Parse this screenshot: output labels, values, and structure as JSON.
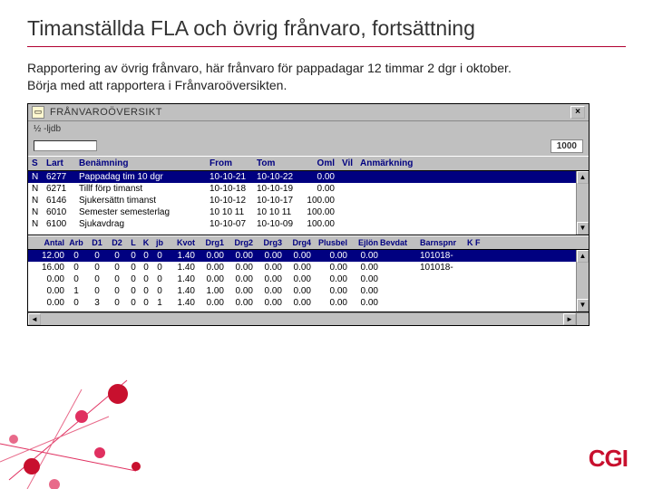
{
  "slide": {
    "title": "Timanställda FLA och övrig frånvaro, fortsättning",
    "desc_line1": "Rapportering av övrig frånvaro, här frånvaro för pappadagar 12 timmar 2 dgr i oktober.",
    "desc_line2": "Börja med att rapportera i Frånvaroöversikten."
  },
  "window": {
    "title": "FRÅNVAROÖVERSIKT",
    "info_left": "½   -ljdb",
    "right_tag": "1000"
  },
  "top_headers": {
    "s": "S",
    "lart": "Lart",
    "ben": "Benämning",
    "from": "From",
    "tom": "Tom",
    "oml": "Oml",
    "vil": "Vil",
    "anm": "Anmärkning"
  },
  "top_rows": [
    {
      "s": "N",
      "lart": "6277",
      "ben": "Pappadag tim 10 dgr",
      "from": "10-10-21",
      "tom": "10-10-22",
      "oml": "0.00",
      "selected": true
    },
    {
      "s": "N",
      "lart": "6271",
      "ben": "Tillf förp timanst",
      "from": "10-10-18",
      "tom": "10-10-19",
      "oml": "0.00"
    },
    {
      "s": "N",
      "lart": "6146",
      "ben": "Sjukersättn timanst",
      "from": "10-10-12",
      "tom": "10-10-17",
      "oml": "100.00"
    },
    {
      "s": "N",
      "lart": "6010",
      "ben": "Semester semesterlag",
      "from": "10 10 11",
      "tom": "10 10 11",
      "oml": "100.00"
    },
    {
      "s": "N",
      "lart": "6100",
      "ben": "Sjukavdrag",
      "from": "10-10-07",
      "tom": "10-10-09",
      "oml": "100.00"
    }
  ],
  "bottom_headers": {
    "ant": "Antal",
    "arb": "Arb",
    "d1": "D1",
    "d2": "D2",
    "l": "L",
    "k": "K",
    "jb": "jb",
    "kv": "Kvot",
    "dr1": "Drg1",
    "dr2": "Drg2",
    "dr3": "Drg3",
    "dr4": "Drg4",
    "pb": "Plusbel",
    "ejl": "Ejlön",
    "bev": "Bevdat",
    "bar": "Barnspnr",
    "kf": "K F"
  },
  "bottom_rows": [
    {
      "ant": "12.00",
      "arb": "0",
      "d1": "0",
      "d2": "0",
      "l": "0",
      "k": "0",
      "jb": "0",
      "kv": "1.40",
      "dr1": "0.00",
      "dr2": "0.00",
      "dr3": "0.00",
      "dr4": "0.00",
      "pb": "0.00",
      "ejl": "0.00",
      "bev": "",
      "bar": "101018-",
      "selected": true
    },
    {
      "ant": "16.00",
      "arb": "0",
      "d1": "0",
      "d2": "0",
      "l": "0",
      "k": "0",
      "jb": "0",
      "kv": "1.40",
      "dr1": "0.00",
      "dr2": "0.00",
      "dr3": "0.00",
      "dr4": "0.00",
      "pb": "0.00",
      "ejl": "0.00",
      "bev": "",
      "bar": "101018-"
    },
    {
      "ant": "0.00",
      "arb": "0",
      "d1": "0",
      "d2": "0",
      "l": "0",
      "k": "0",
      "jb": "0",
      "kv": "1.40",
      "dr1": "0.00",
      "dr2": "0.00",
      "dr3": "0.00",
      "dr4": "0.00",
      "pb": "0.00",
      "ejl": "0.00",
      "bev": "",
      "bar": ""
    },
    {
      "ant": "0.00",
      "arb": "1",
      "d1": "0",
      "d2": "0",
      "l": "0",
      "k": "0",
      "jb": "0",
      "kv": "1.40",
      "dr1": "1.00",
      "dr2": "0.00",
      "dr3": "0.00",
      "dr4": "0.00",
      "pb": "0.00",
      "ejl": "0.00",
      "bev": "",
      "bar": ""
    },
    {
      "ant": "0.00",
      "arb": "0",
      "d1": "3",
      "d2": "0",
      "l": "0",
      "k": "0",
      "jb": "1",
      "kv": "1.40",
      "dr1": "0.00",
      "dr2": "0.00",
      "dr3": "0.00",
      "dr4": "0.00",
      "pb": "0.00",
      "ejl": "0.00",
      "bev": "",
      "bar": ""
    }
  ],
  "logo": "CGI",
  "colors": {
    "accent": "#c8102e",
    "header_text": "#000080",
    "selection_bg": "#000080",
    "window_bg": "#c0c0c0"
  }
}
